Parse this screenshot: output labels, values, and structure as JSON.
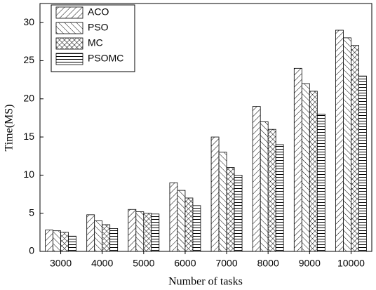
{
  "chart_data": {
    "type": "bar",
    "x_label": "Number of tasks",
    "y_label": "Time(MS)",
    "categories": [
      "3000",
      "4000",
      "5000",
      "6000",
      "7000",
      "8000",
      "9000",
      "10000"
    ],
    "series": [
      {
        "name": "ACO",
        "color": "#000000",
        "hatch": "forward",
        "values": [
          2.8,
          4.8,
          5.5,
          9,
          15,
          19,
          24,
          29
        ]
      },
      {
        "name": "PSO",
        "color": "#000000",
        "hatch": "back",
        "values": [
          2.7,
          4.0,
          5.2,
          8,
          13,
          17,
          22,
          28
        ]
      },
      {
        "name": "MC",
        "color": "#000000",
        "hatch": "cross",
        "values": [
          2.5,
          3.5,
          5.0,
          7,
          11,
          16,
          21,
          27
        ]
      },
      {
        "name": "PSOMC",
        "color": "#000000",
        "hatch": "horizontal",
        "values": [
          2.0,
          3.0,
          4.9,
          6,
          10,
          14,
          18,
          23
        ]
      }
    ],
    "ylim": [
      0,
      32.5
    ],
    "yticks": [
      0,
      5,
      10,
      15,
      20,
      25,
      30
    ],
    "legend": "upper-left"
  }
}
